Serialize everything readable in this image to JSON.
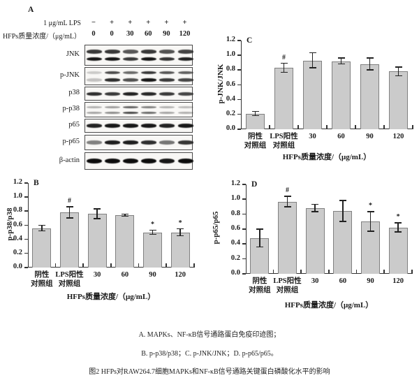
{
  "colors": {
    "bar_fill": "#cbcbcb",
    "bar_border": "#808080",
    "axis": "#333333",
    "text": "#1a1a1a",
    "band": "#0d0d0d"
  },
  "figure": {
    "panel_a": {
      "label": "A",
      "lps_row": {
        "label": "1 μg/mL LPS",
        "values": [
          "−",
          "+",
          "+",
          "+",
          "+",
          "+"
        ]
      },
      "conc_row": {
        "label": "HFPs质量浓度/（μg/mL）",
        "values": [
          "0",
          "0",
          "30",
          "60",
          "90",
          "120"
        ]
      },
      "blot_rows": [
        {
          "label": "JNK",
          "bands": 2,
          "band_height": 5.5,
          "opacities": [
            0.95,
            0.95,
            0.8,
            0.95,
            0.82,
            0.9
          ]
        },
        {
          "label": "p-JNK",
          "bands": 2,
          "band_height": 4.5,
          "opacities": [
            0.22,
            0.85,
            0.7,
            0.95,
            0.8,
            0.75
          ]
        },
        {
          "label": "p38",
          "bands": 1,
          "band_height": 5.0,
          "opacities": [
            0.85,
            0.8,
            0.9,
            0.88,
            0.8,
            0.75
          ]
        },
        {
          "label": "p-p38",
          "bands": 2,
          "band_height": 3.0,
          "opacities": [
            0.35,
            0.45,
            0.75,
            0.6,
            0.35,
            0.3
          ]
        },
        {
          "label": "p65",
          "bands": 1,
          "band_height": 5.5,
          "opacities": [
            0.9,
            0.95,
            0.95,
            0.95,
            0.9,
            0.95
          ]
        },
        {
          "label": "p-p65",
          "bands": 1,
          "band_height": 5.5,
          "opacities": [
            0.5,
            0.92,
            0.92,
            0.85,
            0.55,
            0.82
          ]
        },
        {
          "label": "β-actin",
          "bands": 1,
          "band_height": 7.5,
          "opacities": [
            1.0,
            1.0,
            1.0,
            1.0,
            0.95,
            1.0
          ]
        }
      ]
    },
    "caption": {
      "line1": "A. MAPKs、NF-κB信号通路蛋白免疫印迹图；",
      "line2": "B. p-p38/p38；C. p-JNK/JNK；D. p-p65/p65。",
      "line3": "图2 HFPs对RAW264.7细胞MAPKs和NF-κB信号通路关键蛋白磷酸化水平的影响"
    }
  },
  "chart_data": [
    {
      "type": "bar",
      "panel": "B",
      "title": "",
      "ylabel": "p-p38/p38",
      "xlabel": "HFPs质量浓度/（μg/mL）",
      "ylim": [
        0,
        1.2
      ],
      "yticks": [
        0.0,
        0.2,
        0.4,
        0.6,
        0.8,
        1.0,
        1.2
      ],
      "grid": false,
      "categories": [
        [
          "阴性",
          "对照组"
        ],
        [
          "LPS阳性",
          "对照组"
        ],
        [
          "30"
        ],
        [
          "60"
        ],
        [
          "90"
        ],
        [
          "120"
        ]
      ],
      "values": [
        0.56,
        0.78,
        0.76,
        0.74,
        0.5,
        0.5
      ],
      "errors": [
        0.04,
        0.08,
        0.07,
        0.015,
        0.03,
        0.05
      ],
      "sig_marks": [
        "",
        "#",
        "",
        "",
        "*",
        "*"
      ]
    },
    {
      "type": "bar",
      "panel": "C",
      "title": "",
      "ylabel": "p-JNK/JNK",
      "xlabel": "HFPs质量浓度/（μg/mL）",
      "ylim": [
        0,
        1.2
      ],
      "yticks": [
        0.0,
        0.2,
        0.4,
        0.6,
        0.8,
        1.0,
        1.2
      ],
      "grid": false,
      "categories": [
        [
          "阴性",
          "对照组"
        ],
        [
          "LPS阳性",
          "对照组"
        ],
        [
          "30"
        ],
        [
          "60"
        ],
        [
          "90"
        ],
        [
          "120"
        ]
      ],
      "values": [
        0.21,
        0.83,
        0.93,
        0.92,
        0.88,
        0.78
      ],
      "errors": [
        0.03,
        0.06,
        0.1,
        0.04,
        0.08,
        0.06
      ],
      "sig_marks": [
        "",
        "#",
        "",
        "",
        "",
        ""
      ]
    },
    {
      "type": "bar",
      "panel": "D",
      "title": "",
      "ylabel": "p-p65/p65",
      "xlabel": "HFPs质量浓度/（μg/mL）",
      "ylim": [
        0,
        1.2
      ],
      "yticks": [
        0.0,
        0.2,
        0.4,
        0.6,
        0.8,
        1.0,
        1.2
      ],
      "grid": false,
      "categories": [
        [
          "阴性",
          "对照组"
        ],
        [
          "LPS阳性",
          "对照组"
        ],
        [
          "30"
        ],
        [
          "60"
        ],
        [
          "90"
        ],
        [
          "120"
        ]
      ],
      "values": [
        0.48,
        0.97,
        0.88,
        0.84,
        0.7,
        0.62
      ],
      "errors": [
        0.12,
        0.07,
        0.05,
        0.14,
        0.13,
        0.06
      ],
      "sig_marks": [
        "",
        "#",
        "",
        "",
        "*",
        "*"
      ]
    }
  ]
}
